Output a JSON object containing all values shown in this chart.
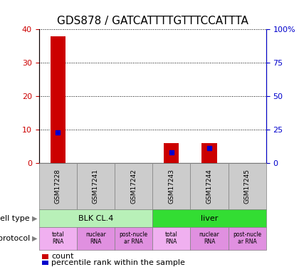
{
  "title": "GDS878 / GATCATTTTGTTTCCATTTA",
  "samples": [
    "GSM17228",
    "GSM17241",
    "GSM17242",
    "GSM17243",
    "GSM17244",
    "GSM17245"
  ],
  "counts": [
    38,
    0,
    0,
    6,
    6,
    0
  ],
  "percentile_ranks": [
    23,
    0,
    0,
    8,
    11,
    0
  ],
  "ylim_left": [
    0,
    40
  ],
  "ylim_right": [
    0,
    100
  ],
  "yticks_left": [
    0,
    10,
    20,
    30,
    40
  ],
  "yticks_right": [
    0,
    25,
    50,
    75,
    100
  ],
  "ytick_labels_right": [
    "0",
    "25",
    "50",
    "75",
    "100%"
  ],
  "cell_types": [
    {
      "label": "BLK CL.4",
      "start": 0,
      "end": 3,
      "color": "#b8f0b8"
    },
    {
      "label": "liver",
      "start": 3,
      "end": 6,
      "color": "#33dd33"
    }
  ],
  "protocols": [
    {
      "label": "total\nRNA",
      "color": "#f0b0f0"
    },
    {
      "label": "nuclear\nRNA",
      "color": "#e090e0"
    },
    {
      "label": "post-nucle\nar RNA",
      "color": "#e090e0"
    },
    {
      "label": "total\nRNA",
      "color": "#f0b0f0"
    },
    {
      "label": "nuclear\nRNA",
      "color": "#e090e0"
    },
    {
      "label": "post-nucle\nar RNA",
      "color": "#e090e0"
    }
  ],
  "bar_color": "#cc0000",
  "dot_color": "#0000cc",
  "title_fontsize": 11,
  "tick_fontsize": 8,
  "axis_color_left": "#cc0000",
  "axis_color_right": "#0000cc",
  "sample_box_color": "#cccccc"
}
